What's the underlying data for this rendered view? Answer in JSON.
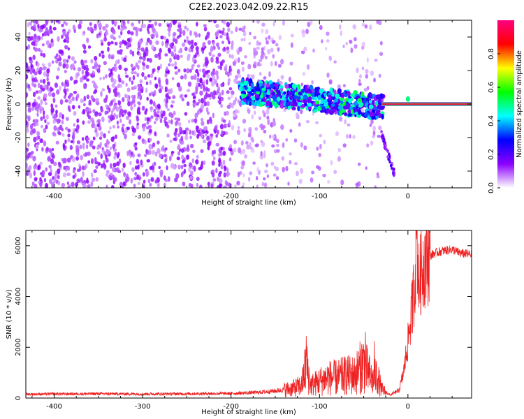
{
  "chart_data": [
    {
      "type": "heatmap",
      "title": "C2E2.2023.042.09.22.R15",
      "xlabel": "Height of straight line (km)",
      "ylabel": "Frequency (Hz)",
      "xlim": [
        -432,
        72
      ],
      "ylim": [
        -50,
        50
      ],
      "xticks": [
        "-400",
        "-300",
        "-200",
        "-100",
        "0"
      ],
      "yticks": [
        "-40",
        "-20",
        "0",
        "20",
        "40"
      ],
      "colorbar": {
        "label": "Normalized spectral amplitude",
        "range": [
          0,
          1
        ],
        "ticks": [
          "0.0",
          "0.2",
          "0.4",
          "0.6",
          "0.8"
        ],
        "colormap": [
          "#ffffff",
          "#8c00ff",
          "#0000ff",
          "#00ffff",
          "#00ff00",
          "#ffff00",
          "#ff0000",
          "#ff0080"
        ]
      },
      "features": {
        "signal_line": {
          "x_start": -30,
          "x_end": 72,
          "frequency": 0,
          "amplitude": 0.95
        },
        "dense_band": {
          "x_start": -190,
          "x_end": -28,
          "frequency_from": 8,
          "frequency_to": -2,
          "amplitude_max": 0.45
        },
        "branch": {
          "x_start": -30,
          "x_end": -15,
          "frequency_from": -18,
          "frequency_to": -42
        },
        "noise_region": {
          "x_start": -432,
          "x_end": -30,
          "frequency_range": [
            -50,
            50
          ]
        }
      },
      "grid": false
    },
    {
      "type": "line",
      "xlabel": "Height of straight line (km)",
      "ylabel": "SNR (10 * v/v)",
      "xlim": [
        -432,
        72
      ],
      "ylim": [
        0,
        6600
      ],
      "xticks": [
        "-400",
        "-300",
        "-200",
        "-100",
        "0"
      ],
      "yticks": [
        "0",
        "2000",
        "4000",
        "6000"
      ],
      "color": "#ee2222",
      "x": [
        -432,
        -400,
        -350,
        -300,
        -250,
        -200,
        -170,
        -150,
        -130,
        -120,
        -115,
        -110,
        -100,
        -90,
        -80,
        -70,
        -60,
        -50,
        -45,
        -40,
        -35,
        -30,
        -20,
        -10,
        -5,
        0,
        5,
        8,
        10,
        12,
        15,
        20,
        30,
        40,
        50,
        60,
        72
      ],
      "y": [
        150,
        160,
        170,
        160,
        170,
        180,
        220,
        280,
        380,
        500,
        1350,
        500,
        650,
        800,
        800,
        900,
        900,
        1400,
        1000,
        700,
        900,
        350,
        120,
        300,
        1000,
        2200,
        3600,
        4800,
        6600,
        4500,
        5000,
        5500,
        5700,
        5800,
        5850,
        5700,
        5650
      ],
      "spikes": [
        {
          "x": -115,
          "y": 2450
        },
        {
          "x": -48,
          "y": 2600
        },
        {
          "x": -38,
          "y": 2250
        },
        {
          "x": 10,
          "y": 6600
        }
      ],
      "grid": false
    }
  ]
}
